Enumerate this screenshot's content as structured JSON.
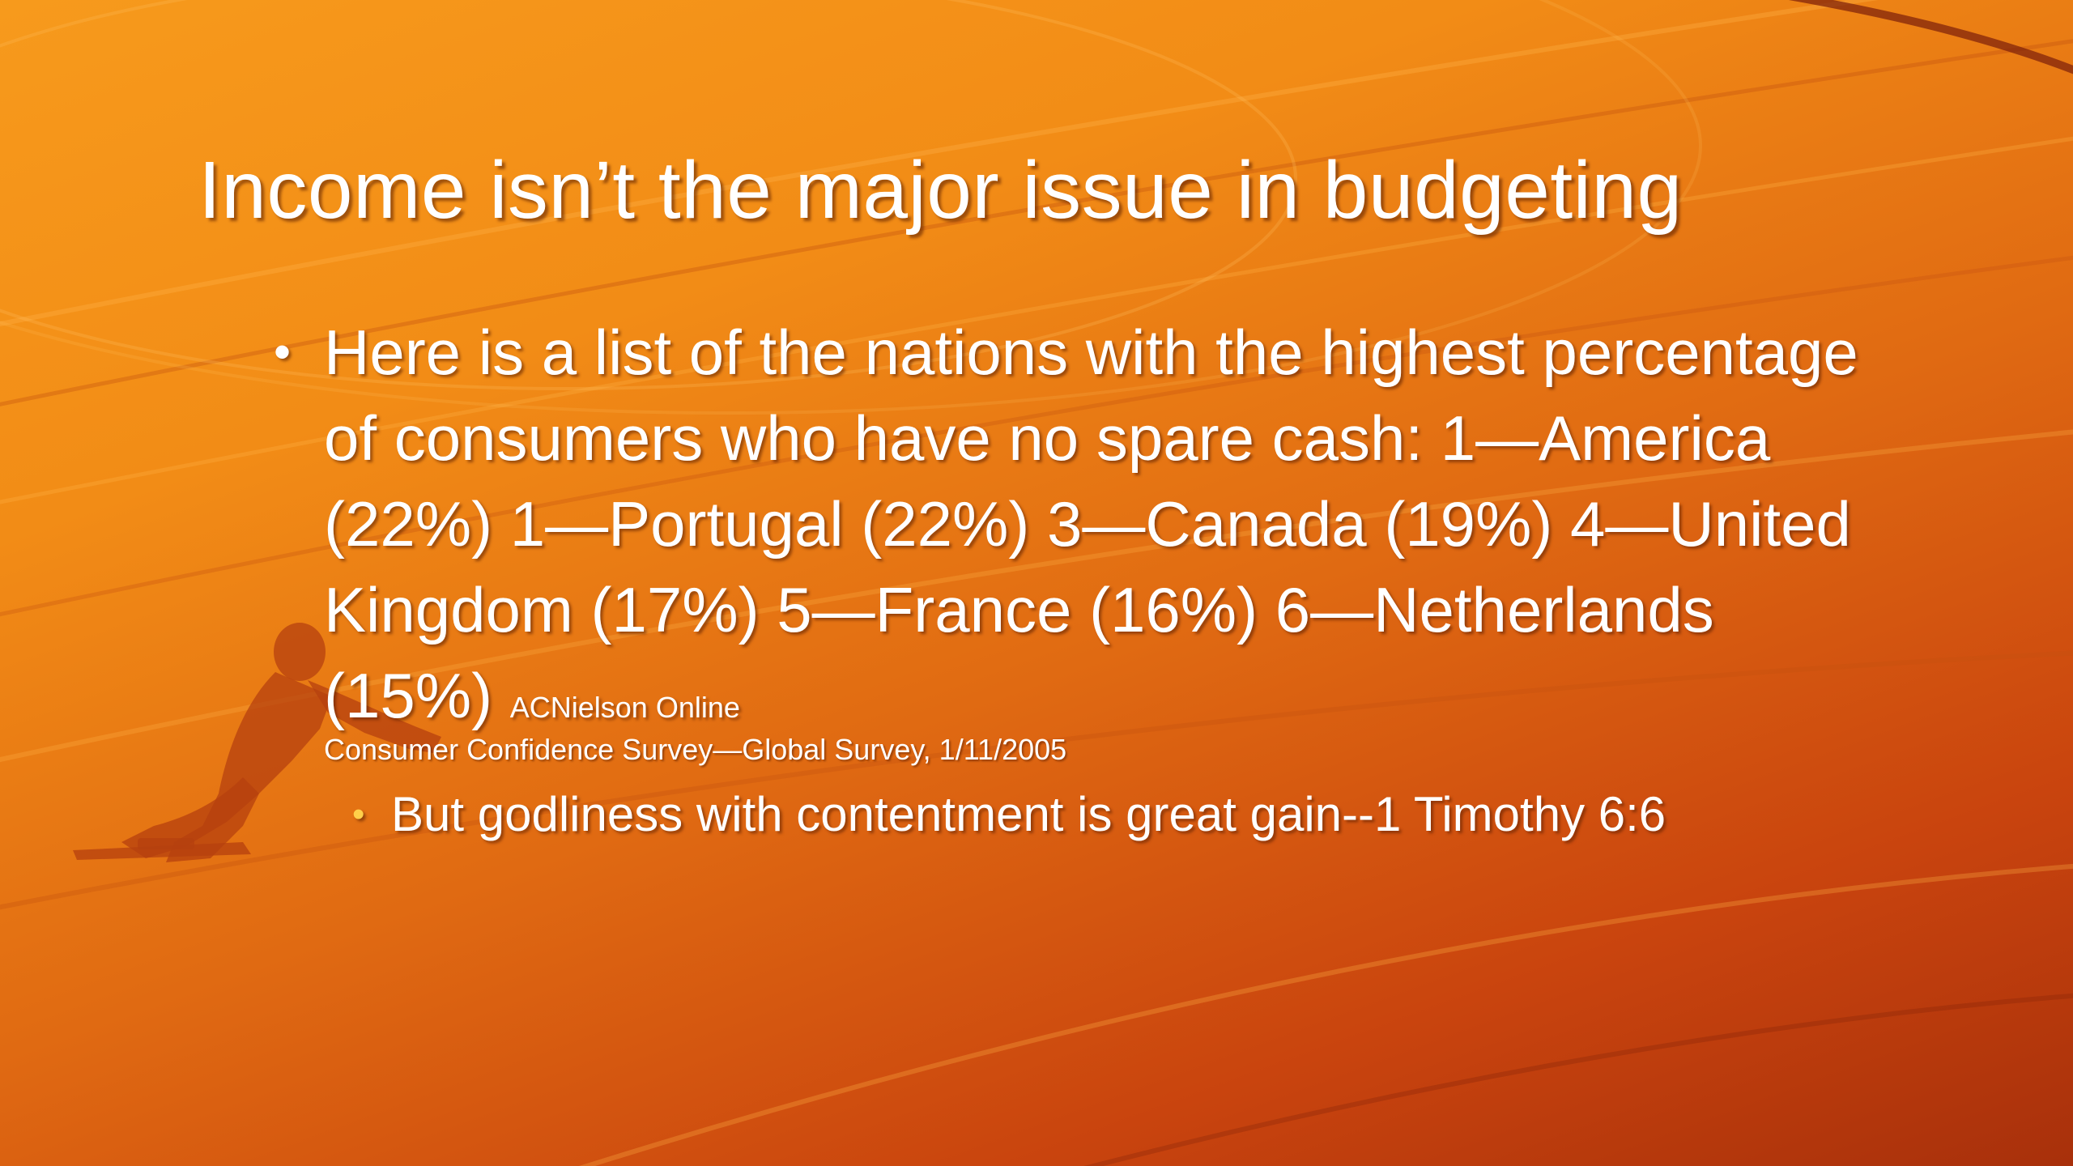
{
  "slide": {
    "title": "Income isn’t the major issue in budgeting",
    "bullet_text": "Here is a list of the nations with the highest percentage of consumers who have no spare cash: 1—America (22%) 1—Portugal (22%) 3—Canada (19%) 4—United Kingdom (17%) 5—France (16%) 6—Netherlands (15%)",
    "citation_part1": "ACNielson Online",
    "citation_part2": "Consumer Confidence Survey—Global Survey, 1/11/2005",
    "sub_bullet_text": "But godliness with contentment is great gain--1 Timothy 6:6",
    "bullet_symbol": "•"
  },
  "colors": {
    "background_light": "#f79a1c",
    "background_dark": "#a8300b",
    "text": "#ffffff",
    "sub_bullet_marker": "#ffd04a",
    "runner_silhouette": "#b5400f"
  },
  "icons": {
    "background_graphic": "running-track-arcs",
    "runner_graphic": "sprinter-silhouette-icon"
  }
}
